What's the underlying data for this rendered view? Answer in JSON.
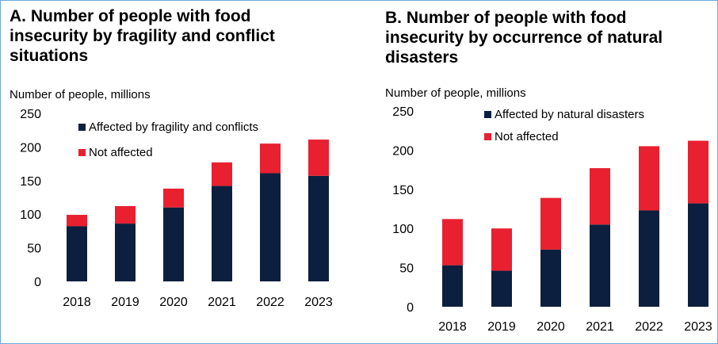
{
  "colors": {
    "affected": "#0d1f3f",
    "not_affected": "#e8202f",
    "border": "#6fa8dc"
  },
  "chart_data": [
    {
      "type": "bar",
      "stacked": true,
      "title": "A. Number of people with food insecurity by fragility and conflict situations",
      "title_lines": [
        "A. Number of people with food",
        "insecurity by fragility and conflict",
        "situations"
      ],
      "ylabel": "Number of people, millions",
      "ylim": [
        0,
        250
      ],
      "yticks": [
        0,
        50,
        100,
        150,
        200,
        250
      ],
      "categories": [
        "2018",
        "2019",
        "2020",
        "2021",
        "2022",
        "2023"
      ],
      "legend_position": "top-right",
      "series": [
        {
          "name": "Affected by fragility and conflicts",
          "values": [
            82,
            86,
            110,
            142,
            161,
            157
          ]
        },
        {
          "name": "Not affected",
          "values": [
            17,
            26,
            28,
            35,
            44,
            54
          ]
        }
      ]
    },
    {
      "type": "bar",
      "stacked": true,
      "title": "B. Number of people with food insecurity by occurrence of natural disasters",
      "title_lines": [
        "B. Number of people with food",
        "insecurity by occurrence of natural",
        "disasters"
      ],
      "ylabel": "Number of people, millions",
      "ylim": [
        0,
        250
      ],
      "yticks": [
        0,
        50,
        100,
        150,
        200,
        250
      ],
      "categories": [
        "2018",
        "2019",
        "2020",
        "2021",
        "2022",
        "2023"
      ],
      "legend_position": "top-right",
      "series": [
        {
          "name": "Affected by natural disasters",
          "values": [
            53,
            46,
            73,
            105,
            123,
            132
          ]
        },
        {
          "name": "Not affected",
          "values": [
            59,
            54,
            66,
            72,
            82,
            80
          ]
        }
      ]
    }
  ]
}
